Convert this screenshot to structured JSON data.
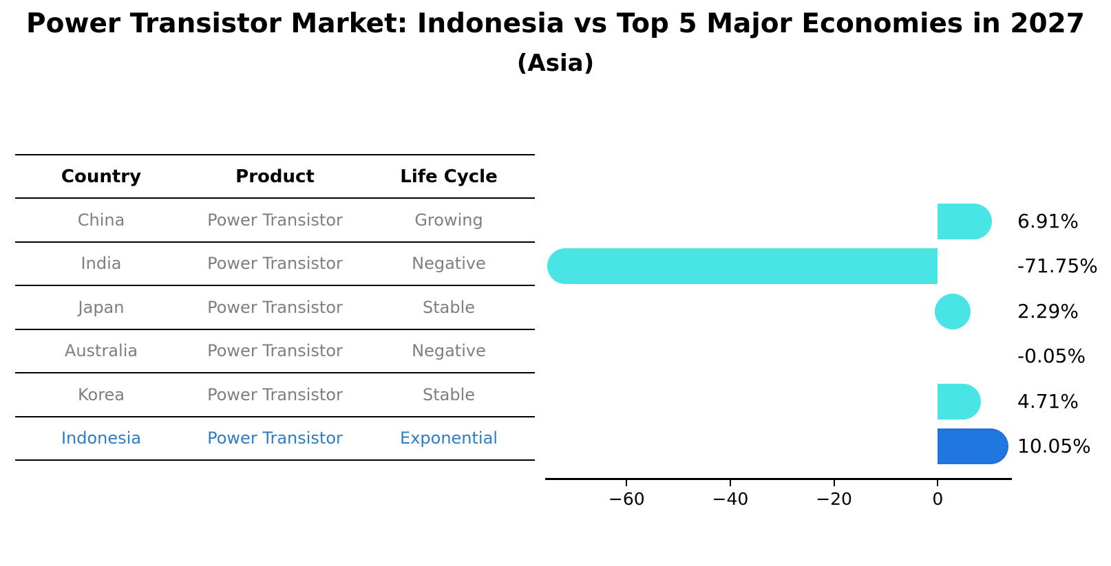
{
  "title": "Power Transistor Market: Indonesia vs Top 5 Major Economies in 2027",
  "subtitle": "(Asia)",
  "table": {
    "headers": [
      "Country",
      "Product",
      "Life Cycle"
    ],
    "rows": [
      {
        "country": "China",
        "product": "Power Transistor",
        "life_cycle": "Growing",
        "highlight": false
      },
      {
        "country": "India",
        "product": "Power Transistor",
        "life_cycle": "Negative",
        "highlight": false
      },
      {
        "country": "Japan",
        "product": "Power Transistor",
        "life_cycle": "Stable",
        "highlight": false
      },
      {
        "country": "Australia",
        "product": "Power Transistor",
        "life_cycle": "Negative",
        "highlight": false
      },
      {
        "country": "Korea",
        "product": "Power Transistor",
        "life_cycle": "Stable",
        "highlight": false
      },
      {
        "country": "Indonesia",
        "product": "Power Transistor",
        "life_cycle": "Exponential",
        "highlight": true
      }
    ]
  },
  "chart_data": {
    "type": "bar",
    "orientation": "horizontal",
    "title": "Power Transistor Market: Indonesia vs Top 5 Major Economies in 2027",
    "subtitle": "(Asia)",
    "categories": [
      "China",
      "India",
      "Japan",
      "Australia",
      "Korea",
      "Indonesia"
    ],
    "values": [
      6.91,
      -71.75,
      2.29,
      -0.05,
      4.71,
      10.05
    ],
    "value_labels": [
      "6.91%",
      "-71.75%",
      "2.29%",
      "-0.05%",
      "4.71%",
      "10.05%"
    ],
    "highlight_category": "Indonesia",
    "highlight_index": 5,
    "xlim": [
      -75.7,
      14.3
    ],
    "xticks": [
      -60,
      -40,
      -20,
      0
    ],
    "xtick_labels": [
      "−60",
      "−40",
      "−20",
      "0"
    ],
    "grid": false,
    "legend": "none",
    "colors": {
      "bar": "#48E5E4",
      "highlight_bar": "#2077DF",
      "highlight_bar_border": "#2A6BD8",
      "highlight_text": "#2E7EC6",
      "text": "#000000",
      "cell_text": "#7f7f7f",
      "axis": "#000000"
    }
  }
}
